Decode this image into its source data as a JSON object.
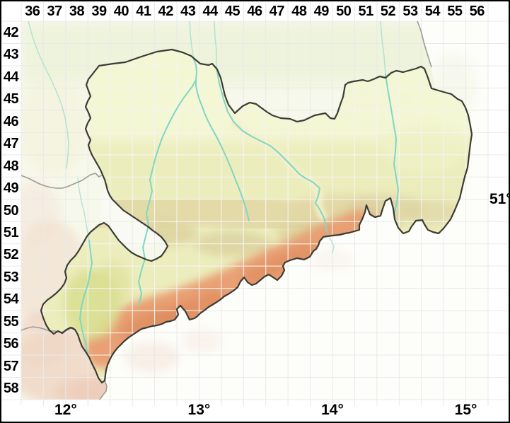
{
  "map_labels": {
    "column_labels": [
      "36",
      "37",
      "38",
      "39",
      "40",
      "41",
      "42",
      "43",
      "44",
      "45",
      "46",
      "47",
      "48",
      "49",
      "50",
      "51",
      "52",
      "53",
      "54",
      "55",
      "56"
    ],
    "row_labels": [
      "42",
      "43",
      "44",
      "45",
      "46",
      "47",
      "48",
      "49",
      "50",
      "51",
      "52",
      "53",
      "54",
      "55",
      "56",
      "57",
      "58"
    ],
    "longitude_labels": [
      "12°",
      "13°",
      "14°",
      "15°"
    ],
    "latitude_labels": [
      "51°"
    ]
  },
  "palette": {
    "frame": "#000000",
    "grid_line": "#e9e9e9",
    "saxony_border": "#3c3c36",
    "state_border": "#9c9c94",
    "river": "#7fd6c5",
    "lowland_green": "#f3f7d4",
    "plain_yellow": "#ecedbc",
    "hills_tan": "#e2d7a4",
    "foothills_khaki": "#d9cd98",
    "mountains_orange": "#e89c6f",
    "high_mountains_orange": "#e08e61",
    "vogtland_green": "#dadf93",
    "outside_muted": "#f7f8ec",
    "abroad_white": "#fdfdf9"
  }
}
